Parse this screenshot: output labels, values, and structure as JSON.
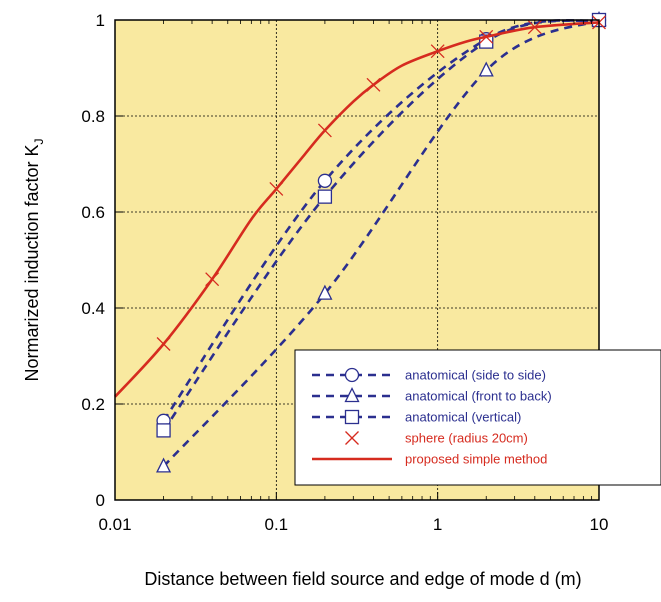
{
  "chart_data": {
    "type": "line",
    "xlabel": "Distance  between field source and edge of mode d (m)",
    "ylabel": {
      "main": "Normarized induction factor K",
      "sub": "J"
    },
    "x_scale": "log",
    "xlim": [
      0.01,
      10
    ],
    "ylim": [
      0,
      1
    ],
    "x_ticks": [
      {
        "value": 0.01,
        "label": "0.01"
      },
      {
        "value": 0.1,
        "label": "0.1"
      },
      {
        "value": 1,
        "label": "1"
      },
      {
        "value": 10,
        "label": "10"
      }
    ],
    "y_ticks": [
      {
        "value": 0,
        "label": "0"
      },
      {
        "value": 0.2,
        "label": "0.2"
      },
      {
        "value": 0.4,
        "label": "0.4"
      },
      {
        "value": 0.6,
        "label": "0.6"
      },
      {
        "value": 0.8,
        "label": "0.8"
      },
      {
        "value": 1,
        "label": "1"
      }
    ],
    "grid": true,
    "plot_background": "#f9e9a0",
    "legend_position": "bottom-right",
    "series": [
      {
        "name": "anatomical (side to side)",
        "style": "dashed",
        "marker": "circle",
        "color": "#2b2f8f",
        "text_color": "#2b2f8f",
        "x": [
          0.02,
          0.2,
          2,
          10
        ],
        "y": [
          0.165,
          0.665,
          0.96,
          1.0
        ]
      },
      {
        "name": "anatomical (front to back)",
        "style": "dashed",
        "marker": "triangle",
        "color": "#2b2f8f",
        "text_color": "#2b2f8f",
        "x": [
          0.02,
          0.2,
          2,
          10
        ],
        "y": [
          0.07,
          0.43,
          0.895,
          1.0
        ]
      },
      {
        "name": "anatomical (vertical)",
        "style": "dashed",
        "marker": "square",
        "color": "#2b2f8f",
        "text_color": "#2b2f8f",
        "x": [
          0.02,
          0.2,
          2,
          10
        ],
        "y": [
          0.145,
          0.632,
          0.955,
          1.0
        ]
      },
      {
        "name": "sphere (radius 20cm)",
        "style": "none",
        "marker": "x",
        "color": "#d62b1f",
        "text_color": "#d62b1f",
        "x": [
          0.02,
          0.04,
          0.1,
          0.2,
          0.4,
          1,
          2,
          4,
          10
        ],
        "y": [
          0.325,
          0.46,
          0.648,
          0.77,
          0.865,
          0.935,
          0.965,
          0.985,
          0.995
        ]
      },
      {
        "name": "proposed simple method",
        "style": "solid",
        "marker": "none",
        "color": "#d62b1f",
        "text_color": "#d62b1f",
        "x": [
          0.01,
          0.02,
          0.04,
          0.07,
          0.1,
          0.15,
          0.2,
          0.3,
          0.4,
          0.6,
          1,
          1.5,
          2,
          4,
          10
        ],
        "y": [
          0.215,
          0.325,
          0.46,
          0.585,
          0.648,
          0.72,
          0.77,
          0.83,
          0.865,
          0.905,
          0.935,
          0.955,
          0.965,
          0.985,
          0.995
        ]
      }
    ]
  }
}
